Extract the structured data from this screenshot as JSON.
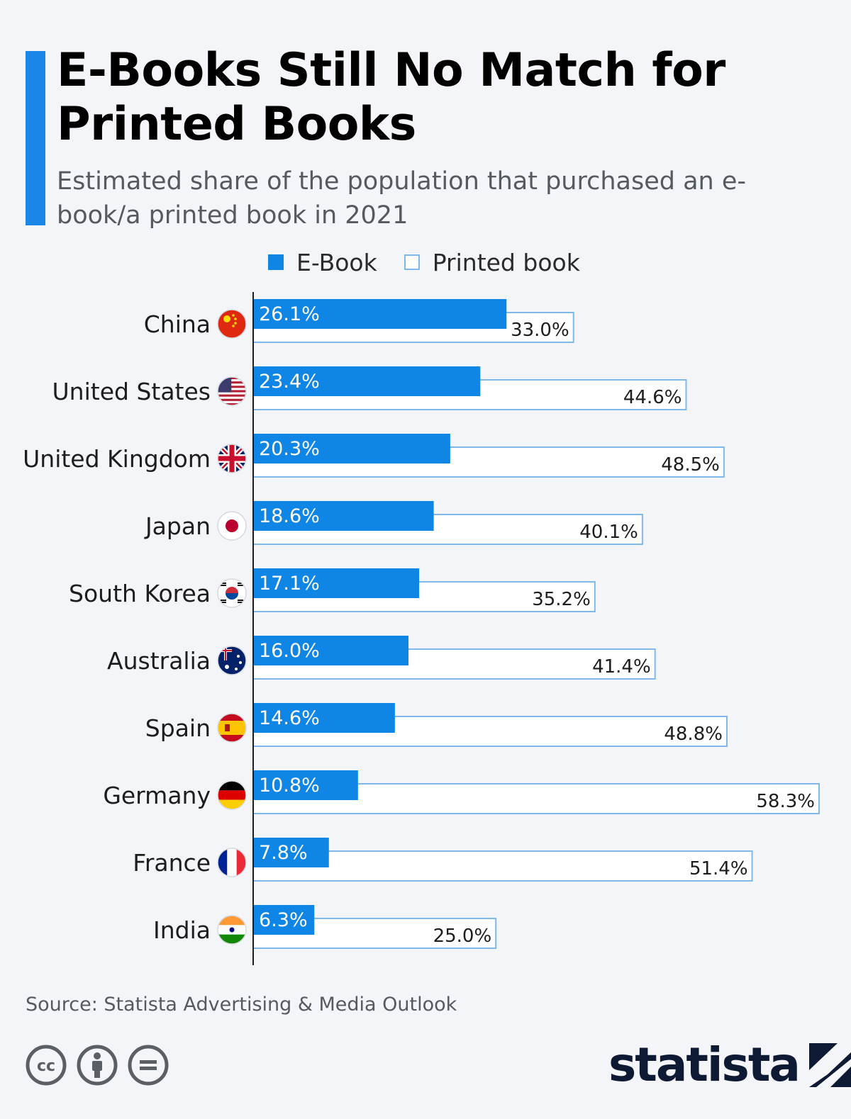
{
  "header": {
    "title": "E-Books Still No Match for Printed Books",
    "subtitle": "Estimated share of the population that purchased an e-book/a printed book in 2021"
  },
  "legend": {
    "ebook_label": "E-Book",
    "print_label": "Printed book"
  },
  "colors": {
    "ebook": "#0f86e6",
    "print_fill": "#ffffff",
    "print_border": "#7fb8ec",
    "axis": "#1d1d1d"
  },
  "chart_data": {
    "type": "bar",
    "orientation": "horizontal",
    "categories": [
      "China",
      "United States",
      "United Kingdom",
      "Japan",
      "South Korea",
      "Australia",
      "Spain",
      "Germany",
      "France",
      "India"
    ],
    "flags": [
      "china-flag-icon",
      "usa-flag-icon",
      "uk-flag-icon",
      "japan-flag-icon",
      "south-korea-flag-icon",
      "australia-flag-icon",
      "spain-flag-icon",
      "germany-flag-icon",
      "france-flag-icon",
      "india-flag-icon"
    ],
    "series": [
      {
        "name": "E-Book",
        "values": [
          26.1,
          23.4,
          20.3,
          18.6,
          17.1,
          16.0,
          14.6,
          10.8,
          7.8,
          6.3
        ]
      },
      {
        "name": "Printed book",
        "values": [
          33.0,
          44.6,
          48.5,
          40.1,
          35.2,
          41.4,
          48.8,
          58.3,
          51.4,
          25.0
        ]
      }
    ],
    "value_suffix": "%",
    "xlim": [
      0,
      58.3
    ],
    "grid": false,
    "legend_position": "top"
  },
  "footer": {
    "source": "Source: Statista Advertising & Media Outlook",
    "brand": "statista",
    "license_icons": [
      "creative-commons-icon",
      "attribution-icon",
      "no-derivatives-icon"
    ]
  }
}
